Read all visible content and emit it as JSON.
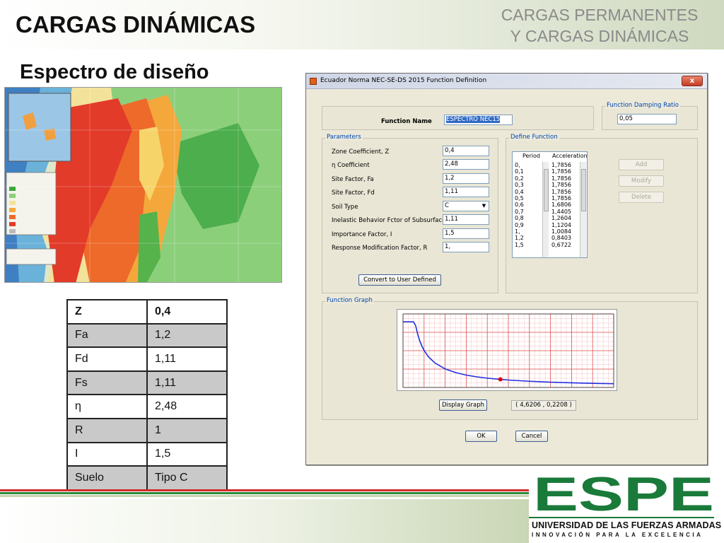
{
  "slide": {
    "title": "CARGAS DINÁMICAS",
    "section_line1": "CARGAS PERMANENTES",
    "section_line2": "Y CARGAS DINÁMICAS",
    "subtitle": "Espectro de diseño"
  },
  "param_table": {
    "rows": [
      {
        "label": "Z",
        "value": "0,4"
      },
      {
        "label": "Fa",
        "value": "1,2"
      },
      {
        "label": "Fd",
        "value": "1,11"
      },
      {
        "label": "Fs",
        "value": "1,11"
      },
      {
        "label": "η",
        "value": "2,48"
      },
      {
        "label": "R",
        "value": "1"
      },
      {
        "label": "I",
        "value": "1,5"
      },
      {
        "label": "Suelo",
        "value": "Tipo C"
      }
    ]
  },
  "dialog": {
    "title": "Ecuador Norma NEC-SE-DS 2015 Function Definition",
    "close_label": "x",
    "function_name_label": "Function Name",
    "function_name_value": "ESPECTRO NEC15",
    "damping_group": "Function Damping Ratio",
    "damping_value": "0,05",
    "parameters_group": "Parameters",
    "params": [
      {
        "label": "Zone Coefficient, Z",
        "value": "0,4"
      },
      {
        "label": "η Coefficient",
        "value": "2,48"
      },
      {
        "label": "Site Factor, Fa",
        "value": "1,2"
      },
      {
        "label": "Site Factor, Fd",
        "value": "1,11"
      },
      {
        "label": "Soil Type",
        "value": "C"
      },
      {
        "label": "Inelastic Behavior Fctor of Subsurface, Fs",
        "value": "1,11"
      },
      {
        "label": "Importance Factor, I",
        "value": "1,5"
      },
      {
        "label": "Response Modification Factor, R",
        "value": "1,"
      }
    ],
    "convert_button": "Convert to User Defined",
    "define_group": "Define Function",
    "period_header": "Period",
    "accel_header": "Acceleration",
    "periods": [
      "0,",
      "0,1",
      "0,2",
      "0,3",
      "0,4",
      "0,5",
      "0,6",
      "0,7",
      "0,8",
      "0,9",
      "1,",
      "1,2",
      "1,5"
    ],
    "accelerations": [
      "1,7856",
      "1,7856",
      "1,7856",
      "1,7856",
      "1,7856",
      "1,7856",
      "1,6806",
      "1,4405",
      "1,2604",
      "1,1204",
      "1,0084",
      "0,8403",
      "0,6722"
    ],
    "add_button": "Add",
    "modify_button": "Modify",
    "delete_button": "Delete",
    "graph_group": "Function Graph",
    "display_graph_button": "Display Graph",
    "coord_readout": "( 4,6206 ,  0,2208 )",
    "ok_button": "OK",
    "cancel_button": "Cancel"
  },
  "chart_data": {
    "type": "line",
    "title": "",
    "xlabel": "",
    "ylabel": "",
    "x": [
      0,
      0.1,
      0.2,
      0.3,
      0.4,
      0.5,
      0.6,
      0.7,
      0.8,
      0.9,
      1.0,
      1.2,
      1.5,
      2.0,
      2.5,
      3.0,
      3.5,
      4.0,
      4.6206,
      5.0,
      6.0,
      7.0,
      8.0,
      9.0,
      10.0
    ],
    "series": [
      {
        "values": [
          1.7856,
          1.7856,
          1.7856,
          1.7856,
          1.7856,
          1.7856,
          1.6806,
          1.4405,
          1.2604,
          1.1204,
          1.0084,
          0.8403,
          0.6722,
          0.5042,
          0.4034,
          0.3361,
          0.2881,
          0.2521,
          0.2208,
          0.2017,
          0.1681,
          0.1441,
          0.1261,
          0.112,
          0.1008
        ]
      }
    ],
    "xlim": [
      0,
      10
    ],
    "ylim": [
      0,
      2.0
    ],
    "grid": true,
    "highlight_point": {
      "x": 4.6206,
      "y": 0.2208
    },
    "line_color": "#1f2ee0",
    "grid_color": "#e05050",
    "point_color": "#e00000"
  },
  "footer": {
    "logo_text": "ESPE",
    "university": "UNIVERSIDAD DE LAS FUERZAS ARMADAS",
    "motto": "INNOVACIÓN PARA LA EXCELENCIA",
    "logo_color": "#1a7a3a"
  },
  "map": {
    "icon": "seismic-zone-map"
  }
}
